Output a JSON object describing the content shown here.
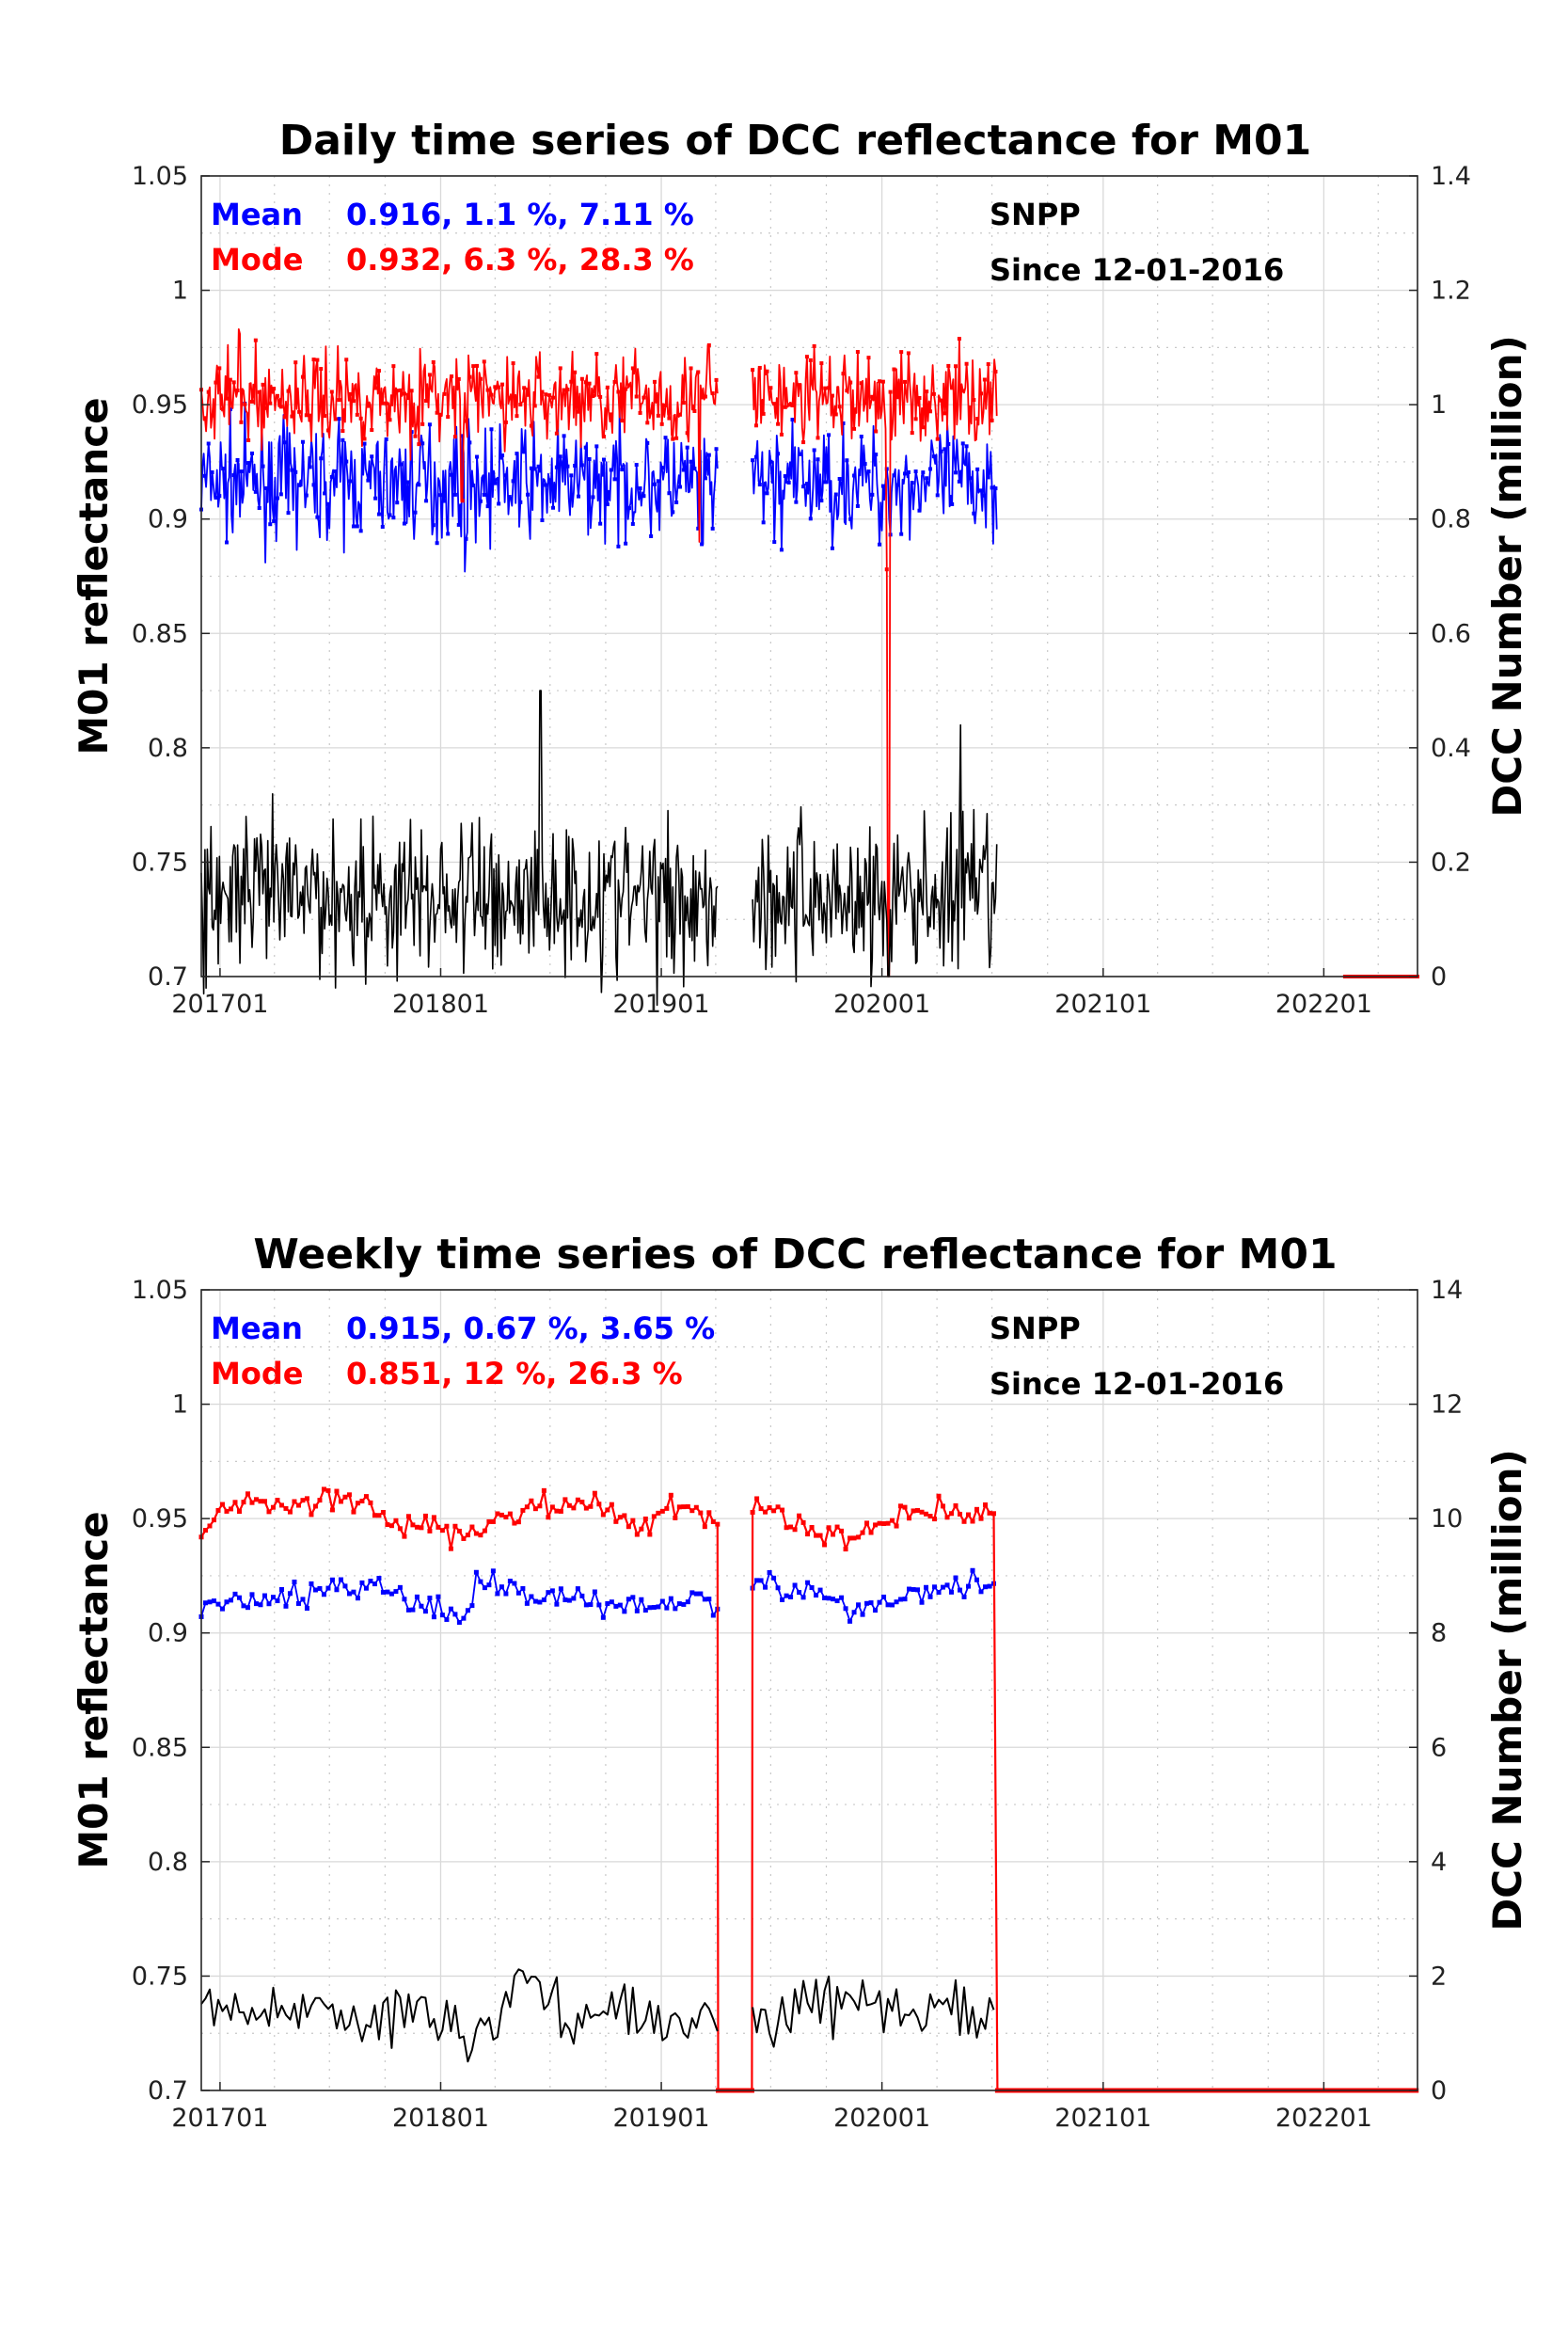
{
  "chart_data": [
    {
      "type": "line",
      "title": "Daily time series of DCC reflectance for M01",
      "ylabel": "M01 reflectance",
      "y2label": "DCC Number (million)",
      "ylim": [
        0.7,
        1.05
      ],
      "y2lim": [
        0,
        1.4
      ],
      "yticks": [
        "1.05",
        "1",
        "0.95",
        "0.9",
        "0.85",
        "0.8",
        "0.75",
        "0.7"
      ],
      "y2ticks": [
        "1.4",
        "1.2",
        "1",
        "0.8",
        "0.6",
        "0.4",
        "0.2",
        "0"
      ],
      "xlim": [
        "2016-12-01",
        "2022-06-05"
      ],
      "xticks": [
        "201701",
        "201801",
        "201901",
        "202001",
        "202101",
        "202201"
      ],
      "grid": true,
      "annotations": {
        "mean_label": "Mean",
        "mean_stats": "0.916, 1.1 %, 7.11 %",
        "mode_label": "Mode",
        "mode_stats": "0.932, 6.3 %, 28.3 %",
        "satellite": "SNPP",
        "since": "Since 12-01-2016"
      },
      "colors": {
        "mean": "#0000ff",
        "mode": "#ff0000",
        "count": "#000000"
      },
      "segments": [
        {
          "from": "2016-12-01",
          "to": "2019-04-05"
        },
        {
          "from": "2019-06-01",
          "to": "2020-07-10"
        }
      ],
      "series": [
        {
          "name": "Mean",
          "axis": "left",
          "level": 0.916,
          "spread": 0.012,
          "outliers": [
            [
              "2018-02-10",
              0.877
            ],
            [
              "2019-03-10",
              0.889
            ],
            [
              "2020-01-01",
              0.895
            ]
          ]
        },
        {
          "name": "Mode",
          "axis": "left",
          "level": 0.953,
          "spread": 0.01,
          "outliers": [
            [
              "2017-02-01",
              0.983
            ],
            [
              "2018-02-05",
              0.908
            ],
            [
              "2019-03-05",
              0.89
            ],
            [
              "2019-03-20",
              0.976
            ],
            [
              "2020-01-10",
              0.878
            ],
            [
              "2020-01-12",
              0.7
            ]
          ]
        },
        {
          "name": "DCC Number",
          "axis": "right",
          "level": 0.14,
          "spread": 0.07,
          "outliers": [
            [
              "2018-06-15",
              0.5
            ],
            [
              "2020-05-10",
              0.44
            ],
            [
              "2020-01-12",
              0.0
            ]
          ]
        }
      ],
      "zero_run": {
        "from": "2022-02-05",
        "to": "2022-06-05",
        "value": 0.7
      }
    },
    {
      "type": "line",
      "title": "Weekly time series of DCC reflectance for M01",
      "ylabel": "M01 reflectance",
      "y2label": "DCC Number (million)",
      "ylim": [
        0.7,
        1.05
      ],
      "y2lim": [
        0,
        14
      ],
      "yticks": [
        "1.05",
        "1",
        "0.95",
        "0.9",
        "0.85",
        "0.8",
        "0.75",
        "0.7"
      ],
      "y2ticks": [
        "14",
        "12",
        "10",
        "8",
        "6",
        "4",
        "2",
        "0"
      ],
      "xlim": [
        "2016-12-01",
        "2022-06-05"
      ],
      "xticks": [
        "201701",
        "201801",
        "201901",
        "202001",
        "202101",
        "202201"
      ],
      "grid": true,
      "annotations": {
        "mean_label": "Mean",
        "mean_stats": "0.915, 0.67 %, 3.65 %",
        "mode_label": "Mode",
        "mode_stats": "0.851, 12 %, 26.3 %",
        "satellite": "SNPP",
        "since": "Since 12-01-2016"
      },
      "colors": {
        "mean": "#0000ff",
        "mode": "#ff0000",
        "count": "#000000"
      },
      "segments": [
        {
          "from": "2016-12-01",
          "to": "2019-04-05"
        },
        {
          "from": "2019-06-01",
          "to": "2020-07-10"
        }
      ],
      "series": [
        {
          "name": "Mean",
          "axis": "left",
          "points": [
            [
              "2016-12-01",
              0.912
            ],
            [
              "2017-03-01",
              0.913
            ],
            [
              "2017-06-01",
              0.918
            ],
            [
              "2017-09-01",
              0.922
            ],
            [
              "2017-12-01",
              0.913
            ],
            [
              "2018-02-01",
              0.904
            ],
            [
              "2018-03-01",
              0.921
            ],
            [
              "2018-06-01",
              0.918
            ],
            [
              "2018-09-01",
              0.914
            ],
            [
              "2018-12-01",
              0.912
            ],
            [
              "2019-03-01",
              0.918
            ],
            [
              "2019-04-01",
              0.909
            ],
            [
              "2019-06-01",
              0.923
            ],
            [
              "2019-09-01",
              0.917
            ],
            [
              "2019-12-01",
              0.911
            ],
            [
              "2020-03-01",
              0.917
            ],
            [
              "2020-05-01",
              0.922
            ],
            [
              "2020-07-01",
              0.922
            ]
          ]
        },
        {
          "name": "Mode",
          "axis": "left",
          "points": [
            [
              "2016-12-01",
              0.946
            ],
            [
              "2017-02-01",
              0.958
            ],
            [
              "2017-06-01",
              0.955
            ],
            [
              "2017-08-01",
              0.96
            ],
            [
              "2017-11-01",
              0.947
            ],
            [
              "2018-02-01",
              0.943
            ],
            [
              "2018-06-01",
              0.955
            ],
            [
              "2018-09-01",
              0.956
            ],
            [
              "2018-12-01",
              0.946
            ],
            [
              "2019-02-01",
              0.955
            ],
            [
              "2019-04-01",
              0.951
            ],
            [
              "2019-06-01",
              0.955
            ],
            [
              "2019-09-01",
              0.945
            ],
            [
              "2019-11-01",
              0.94
            ],
            [
              "2020-02-01",
              0.952
            ],
            [
              "2020-05-01",
              0.955
            ],
            [
              "2020-07-01",
              0.951
            ]
          ]
        },
        {
          "name": "DCC Number",
          "axis": "right",
          "points": [
            [
              "2016-12-01",
              1.5
            ],
            [
              "2017-03-01",
              1.2
            ],
            [
              "2017-06-01",
              1.6
            ],
            [
              "2017-09-01",
              1.1
            ],
            [
              "2017-12-01",
              1.5
            ],
            [
              "2018-03-01",
              0.9
            ],
            [
              "2018-06-01",
              2.0
            ],
            [
              "2018-08-01",
              1.3
            ],
            [
              "2018-11-01",
              1.4
            ],
            [
              "2019-02-01",
              1.1
            ],
            [
              "2019-04-01",
              1.3
            ],
            [
              "2019-06-01",
              1.0
            ],
            [
              "2019-09-01",
              1.6
            ],
            [
              "2019-12-01",
              1.5
            ],
            [
              "2020-03-01",
              1.3
            ],
            [
              "2020-05-01",
              1.5
            ],
            [
              "2020-07-01",
              1.3
            ]
          ]
        }
      ],
      "mode_gaps": [
        {
          "from": "2019-04-05",
          "to": "2019-06-01",
          "value": 0.7
        },
        {
          "from": "2020-07-10",
          "to": "2022-06-05",
          "value": 0.7
        }
      ]
    }
  ]
}
